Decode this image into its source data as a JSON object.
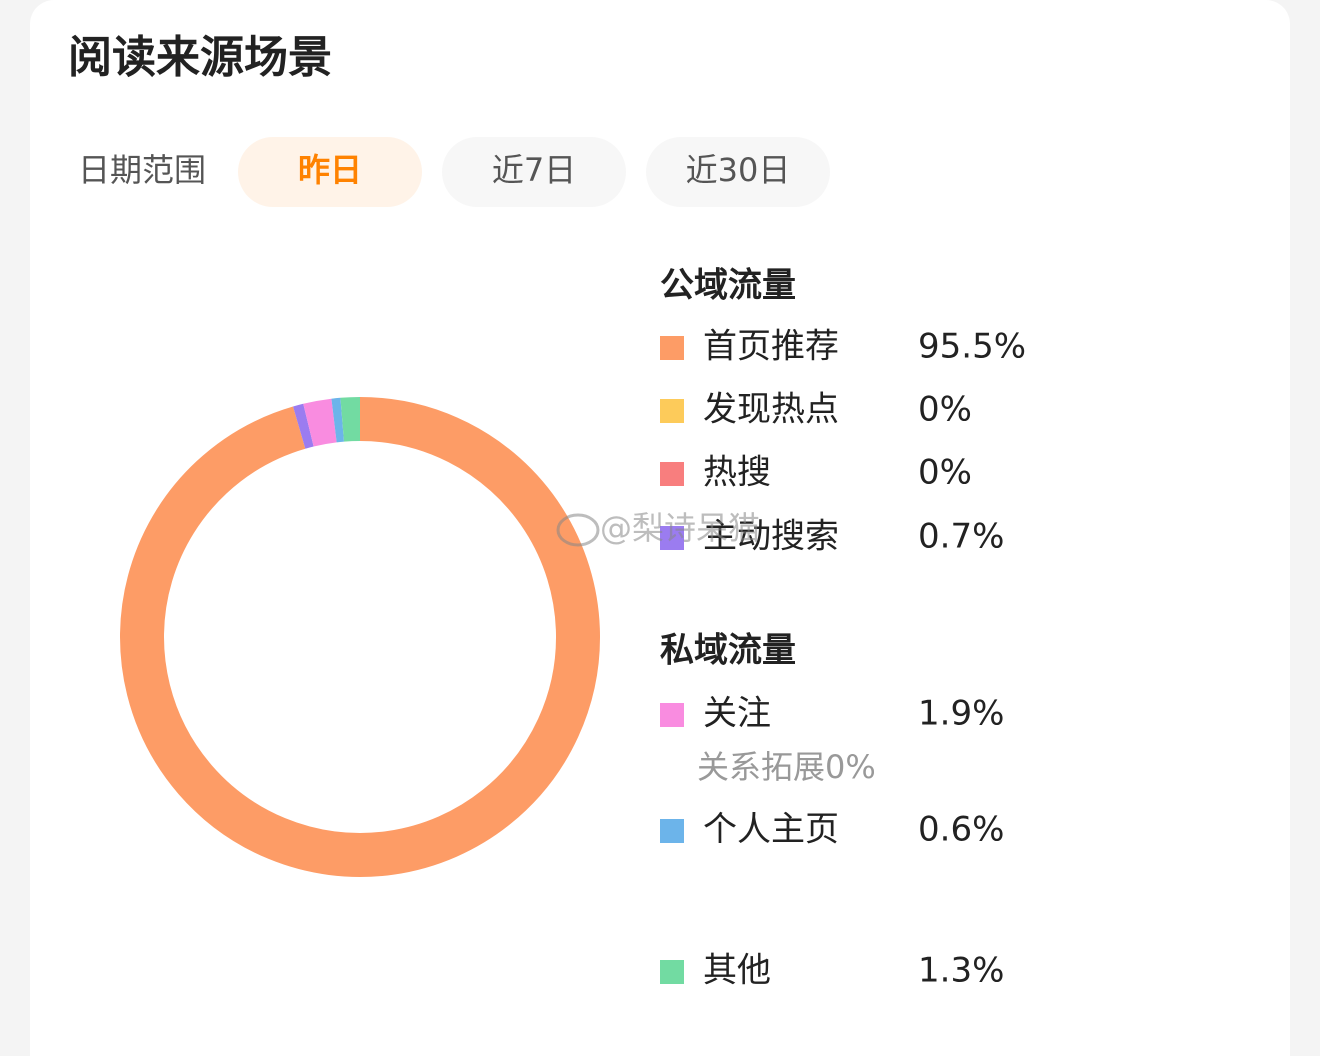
{
  "header": {
    "title": "阅读来源场景"
  },
  "filter": {
    "label": "日期范围",
    "options": [
      "昨日",
      "近7日",
      "近30日"
    ]
  },
  "watermark": "@梨诗呆猫",
  "chart_data": {
    "type": "donut",
    "groups": [
      {
        "name": "公域流量",
        "categories": [
          "首页推荐",
          "发现热点",
          "热搜",
          "主动搜索"
        ],
        "values": [
          95.5,
          0,
          0,
          0.7
        ],
        "value_labels": [
          "95.5%",
          "0%",
          "0%",
          "0.7%"
        ],
        "colors": [
          "#fd9c66",
          "#fdcb5a",
          "#f87e7e",
          "#9b7cf0"
        ]
      },
      {
        "name": "私域流量",
        "categories": [
          "关注",
          "个人主页"
        ],
        "values": [
          1.9,
          0.6
        ],
        "value_labels": [
          "1.9%",
          "0.6%"
        ],
        "colors": [
          "#f98ce0",
          "#6cb4ea"
        ]
      },
      {
        "categories": [
          "其他"
        ],
        "values": [
          1.3
        ],
        "value_labels": [
          "1.3%"
        ],
        "colors": [
          "#72dba2"
        ]
      }
    ],
    "annotations": [
      "关系拓展0%"
    ]
  }
}
